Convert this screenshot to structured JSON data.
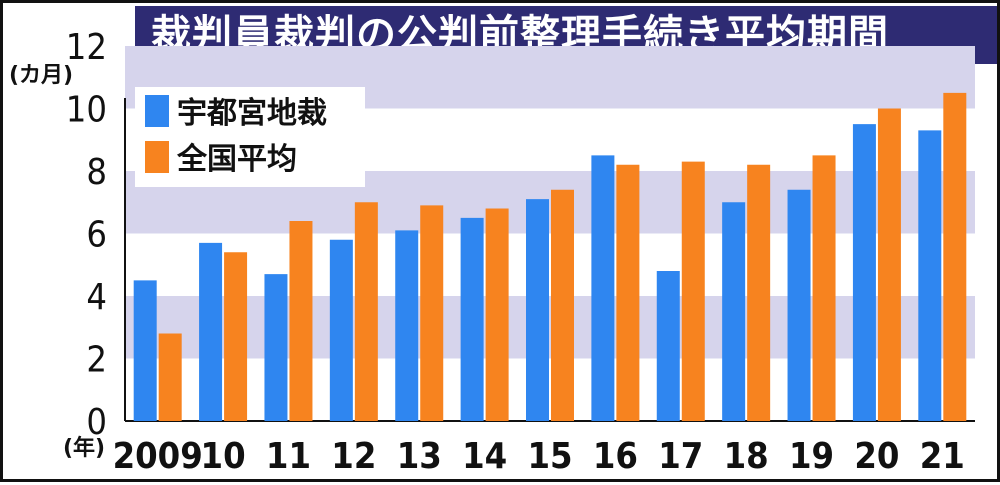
{
  "chart_data": {
    "type": "bar",
    "title": "裁判員裁判の公判前整理手続き平均期間",
    "ylabel": "(カ月)",
    "xlabel": "(年)",
    "ylim": [
      0,
      12
    ],
    "yticks": [
      "0",
      "2",
      "4",
      "6",
      "8",
      "10",
      "12"
    ],
    "categories": [
      "2009",
      "10",
      "11",
      "12",
      "13",
      "14",
      "15",
      "16",
      "17",
      "18",
      "19",
      "20",
      "21"
    ],
    "series": [
      {
        "name": "宇都宮地裁",
        "color": "#2f86f0",
        "values": [
          4.5,
          5.7,
          4.7,
          5.8,
          6.1,
          6.5,
          7.1,
          8.5,
          4.8,
          7.0,
          7.4,
          9.5,
          9.3
        ]
      },
      {
        "name": "全国平均",
        "color": "#f7831f",
        "values": [
          2.8,
          5.4,
          6.4,
          7.0,
          6.9,
          6.8,
          7.4,
          8.2,
          8.3,
          8.2,
          8.5,
          10.0,
          10.5
        ]
      }
    ],
    "grid": "alternating horizontal bands",
    "legend": "top-left",
    "band_color": "#d6d4ec"
  }
}
